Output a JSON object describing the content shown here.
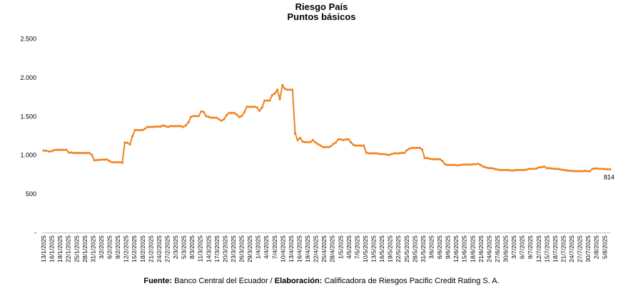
{
  "chart_data": {
    "type": "line",
    "title": "Riesgo País",
    "subtitle": "Puntos básicos",
    "ylim": [
      0,
      2500
    ],
    "y_ticks": [
      {
        "value": 0,
        "label": "-"
      },
      {
        "value": 500,
        "label": "500"
      },
      {
        "value": 1000,
        "label": "1.000"
      },
      {
        "value": 1500,
        "label": "1.500"
      },
      {
        "value": 2000,
        "label": "2.000"
      },
      {
        "value": 2500,
        "label": "2.500"
      }
    ],
    "x_tick_labels": [
      "13/1/2025",
      "16/1/2025",
      "19/1/2025",
      "22/1/2025",
      "25/1/2025",
      "28/1/2025",
      "31/1/2025",
      "3/2/2025",
      "6/2/2025",
      "9/2/2025",
      "12/2/2025",
      "15/2/2025",
      "18/2/2025",
      "21/2/2025",
      "24/2/2025",
      "27/2/2025",
      "2/3/2025",
      "5/3/2025",
      "8/3/2025",
      "11/3/2025",
      "14/3/2025",
      "17/3/2025",
      "20/3/2025",
      "23/3/2025",
      "26/3/2025",
      "29/3/2025",
      "1/4/2025",
      "4/4/2025",
      "7/4/2025",
      "10/4/2025",
      "13/4/2025",
      "16/4/2025",
      "19/4/2025",
      "22/4/2025",
      "25/4/2025",
      "28/4/2025",
      "1/5/2025",
      "4/5/2025",
      "7/5/2025",
      "10/5/2025",
      "13/5/2025",
      "16/5/2025",
      "19/5/2025",
      "22/5/2025",
      "25/5/2025",
      "28/5/2025",
      "31/5/2025",
      "3/6/2025",
      "6/6/2025",
      "9/6/2025",
      "12/6/2025",
      "15/6/2025",
      "18/6/2025",
      "21/6/2025",
      "24/6/2025",
      "27/6/2025",
      "30/6/2025",
      "3/7/2025",
      "6/7/2025",
      "9/7/2025",
      "12/7/2025",
      "15/7/2025",
      "18/7/2025",
      "21/7/2025",
      "24/7/2025",
      "27/7/2025",
      "30/7/2025",
      "2/8/2025",
      "5/8/2025"
    ],
    "x_start": "13/1/2025",
    "x_end": "7/8/2025",
    "series": [
      {
        "color": "#F0821E",
        "values": [
          1055,
          1055,
          1045,
          1045,
          1060,
          1065,
          1065,
          1065,
          1065,
          1065,
          1030,
          1030,
          1025,
          1025,
          1025,
          1025,
          1025,
          1025,
          1025,
          1000,
          930,
          935,
          935,
          940,
          940,
          940,
          920,
          905,
          905,
          905,
          905,
          900,
          1160,
          1155,
          1135,
          1240,
          1320,
          1320,
          1320,
          1320,
          1340,
          1360,
          1360,
          1360,
          1365,
          1365,
          1365,
          1380,
          1370,
          1360,
          1370,
          1370,
          1370,
          1370,
          1370,
          1360,
          1380,
          1420,
          1490,
          1500,
          1500,
          1500,
          1560,
          1555,
          1500,
          1490,
          1480,
          1480,
          1480,
          1460,
          1440,
          1460,
          1510,
          1540,
          1540,
          1540,
          1520,
          1490,
          1500,
          1550,
          1620,
          1620,
          1620,
          1620,
          1610,
          1570,
          1610,
          1700,
          1700,
          1700,
          1770,
          1790,
          1840,
          1720,
          1900,
          1850,
          1840,
          1840,
          1840,
          1280,
          1190,
          1220,
          1170,
          1165,
          1165,
          1165,
          1190,
          1160,
          1140,
          1120,
          1100,
          1100,
          1100,
          1110,
          1140,
          1160,
          1200,
          1200,
          1190,
          1200,
          1200,
          1160,
          1130,
          1120,
          1120,
          1120,
          1120,
          1030,
          1020,
          1020,
          1020,
          1020,
          1015,
          1010,
          1010,
          1005,
          1000,
          1010,
          1020,
          1020,
          1020,
          1025,
          1025,
          1060,
          1080,
          1090,
          1090,
          1090,
          1090,
          1070,
          960,
          960,
          950,
          945,
          945,
          945,
          945,
          920,
          880,
          870,
          870,
          870,
          870,
          865,
          870,
          875,
          875,
          875,
          875,
          880,
          880,
          885,
          870,
          850,
          840,
          830,
          830,
          825,
          815,
          810,
          805,
          805,
          805,
          805,
          800,
          800,
          805,
          805,
          805,
          805,
          810,
          820,
          820,
          820,
          825,
          840,
          840,
          850,
          830,
          830,
          825,
          820,
          820,
          815,
          810,
          805,
          800,
          795,
          795,
          790,
          790,
          790,
          790,
          795,
          790,
          790,
          820,
          825,
          825,
          820,
          820,
          818,
          815,
          814
        ]
      }
    ],
    "annotations": [
      {
        "text": "814"
      }
    ],
    "grid": false,
    "legend": "none"
  },
  "footer": {
    "source_label": "Fuente:",
    "source_value": "Banco Central del Ecuador / ",
    "elab_label": "Elaboración:",
    "elab_value": "Calificadora de Riesgos Pacific Credit Rating S. A."
  }
}
